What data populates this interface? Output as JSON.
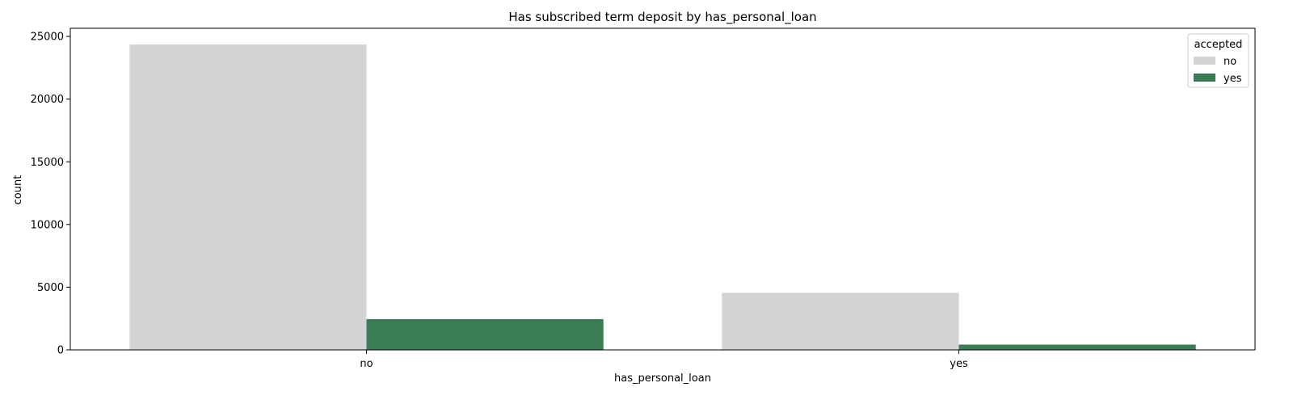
{
  "chart_data": {
    "type": "bar",
    "title": "Has subscribed term deposit by has_personal_loan",
    "xlabel": "has_personal_loan",
    "ylabel": "count",
    "categories": [
      "no",
      "yes"
    ],
    "series": [
      {
        "name": "no",
        "values": [
          24350,
          4550
        ],
        "color": "#d3d3d3"
      },
      {
        "name": "yes",
        "values": [
          2450,
          420
        ],
        "color": "#3a7d55"
      }
    ],
    "ylim": [
      0,
      25650
    ],
    "yticks": [
      0,
      5000,
      10000,
      15000,
      20000,
      25000
    ],
    "legend": {
      "title": "accepted",
      "position": "top-right"
    },
    "grid": false
  }
}
